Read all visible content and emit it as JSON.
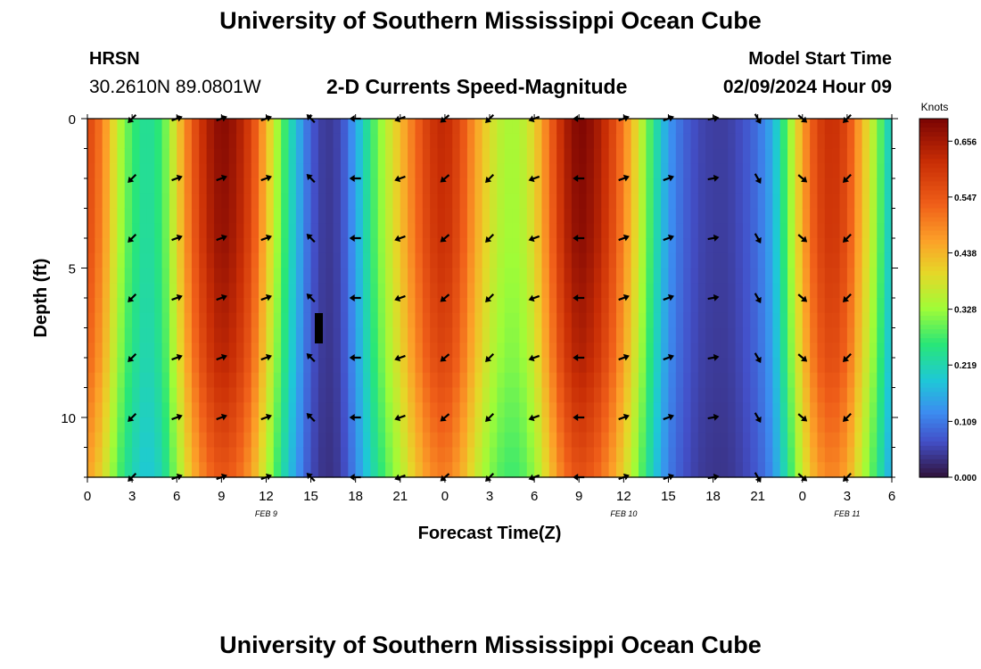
{
  "header": {
    "title": "University of Southern Mississippi Ocean Cube",
    "station": "HRSN",
    "coordinates": "30.2610N  89.0801W",
    "product": "2-D Currents Speed-Magnitude",
    "model_start_label": "Model Start Time",
    "model_start_value": "02/09/2024 Hour 09"
  },
  "footer": {
    "title": "University of Southern Mississippi Ocean Cube"
  },
  "chart_data": {
    "type": "heatmap",
    "xlabel": "Forecast Time(Z)",
    "ylabel": "Depth (ft)",
    "x_range_hours": [
      0,
      54
    ],
    "y_range_ft": [
      0,
      12
    ],
    "x_tick_labels": [
      "0",
      "3",
      "6",
      "9",
      "12",
      "15",
      "18",
      "21",
      "0",
      "3",
      "6",
      "9",
      "12",
      "15",
      "18",
      "21",
      "0",
      "3",
      "6"
    ],
    "y_ticks": [
      0,
      5,
      10
    ],
    "date_labels": [
      {
        "label": "FEB 9",
        "hour": 12
      },
      {
        "label": "FEB 10",
        "hour": 36
      },
      {
        "label": "FEB 11",
        "hour": 51
      }
    ],
    "colorbar": {
      "unit": "Knots",
      "min": 0.0,
      "max": 0.7,
      "tick_labels": [
        "0.000",
        "0.109",
        "0.219",
        "0.328",
        "0.438",
        "0.547",
        "0.656"
      ],
      "tick_values": [
        0.0,
        0.109,
        0.219,
        0.328,
        0.438,
        0.547,
        0.656
      ]
    },
    "speed_profile_knots": {
      "hours": [
        0,
        1,
        2,
        3,
        4,
        5,
        6,
        7,
        8,
        9,
        10,
        11,
        12,
        13,
        14,
        15,
        16,
        17,
        18,
        19,
        20,
        21,
        22,
        23,
        24,
        25,
        26,
        27,
        28,
        29,
        30,
        31,
        32,
        33,
        34,
        35,
        36,
        37,
        38,
        39,
        40,
        41,
        42,
        43,
        44,
        45,
        46,
        47,
        48,
        49,
        50,
        51,
        52,
        53,
        54
      ],
      "values": [
        0.58,
        0.5,
        0.36,
        0.27,
        0.23,
        0.27,
        0.4,
        0.54,
        0.64,
        0.69,
        0.66,
        0.58,
        0.44,
        0.3,
        0.18,
        0.08,
        0.04,
        0.06,
        0.15,
        0.26,
        0.35,
        0.43,
        0.52,
        0.6,
        0.63,
        0.57,
        0.47,
        0.39,
        0.34,
        0.34,
        0.4,
        0.52,
        0.64,
        0.7,
        0.67,
        0.6,
        0.5,
        0.38,
        0.25,
        0.14,
        0.09,
        0.06,
        0.05,
        0.05,
        0.07,
        0.1,
        0.16,
        0.3,
        0.46,
        0.58,
        0.62,
        0.57,
        0.44,
        0.32,
        0.18
      ]
    },
    "depth_factor": [
      {
        "depth": 0,
        "factor": 1.0
      },
      {
        "depth": 4,
        "factor": 0.98
      },
      {
        "depth": 8,
        "factor": 0.92
      },
      {
        "depth": 12,
        "factor": 0.8
      }
    ],
    "vector_depths_ft": [
      0,
      2,
      4,
      6,
      8,
      10,
      12
    ],
    "vector_times_hours": [
      3,
      6,
      9,
      12,
      15,
      18,
      21,
      24,
      27,
      30,
      33,
      36,
      39,
      42,
      45,
      48,
      51
    ],
    "vector_directions_deg_per_time": [
      225,
      70,
      70,
      70,
      315,
      270,
      250,
      230,
      225,
      250,
      270,
      70,
      70,
      80,
      150,
      130,
      225
    ]
  }
}
